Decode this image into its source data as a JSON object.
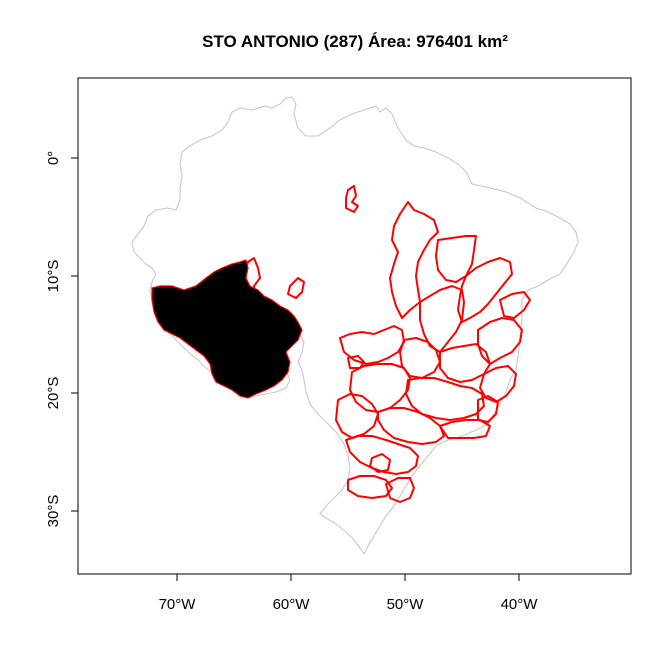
{
  "title": "STO ANTONIO (287) Área: 976401 km²",
  "x_ticks": [
    {
      "value": -70,
      "label": "70°W"
    },
    {
      "value": -60,
      "label": "60°W"
    },
    {
      "value": -50,
      "label": "50°W"
    },
    {
      "value": -40,
      "label": "40°W"
    }
  ],
  "y_ticks": [
    {
      "value": 0,
      "label": "0°"
    },
    {
      "value": -10,
      "label": "10°S"
    },
    {
      "value": -20,
      "label": "20°S"
    },
    {
      "value": -30,
      "label": "30°S"
    }
  ],
  "colors": {
    "country_outline": "#c8c8c8",
    "basin_outline": "#ff0000",
    "highlight_fill": "#000000",
    "frame": "#000000"
  }
}
